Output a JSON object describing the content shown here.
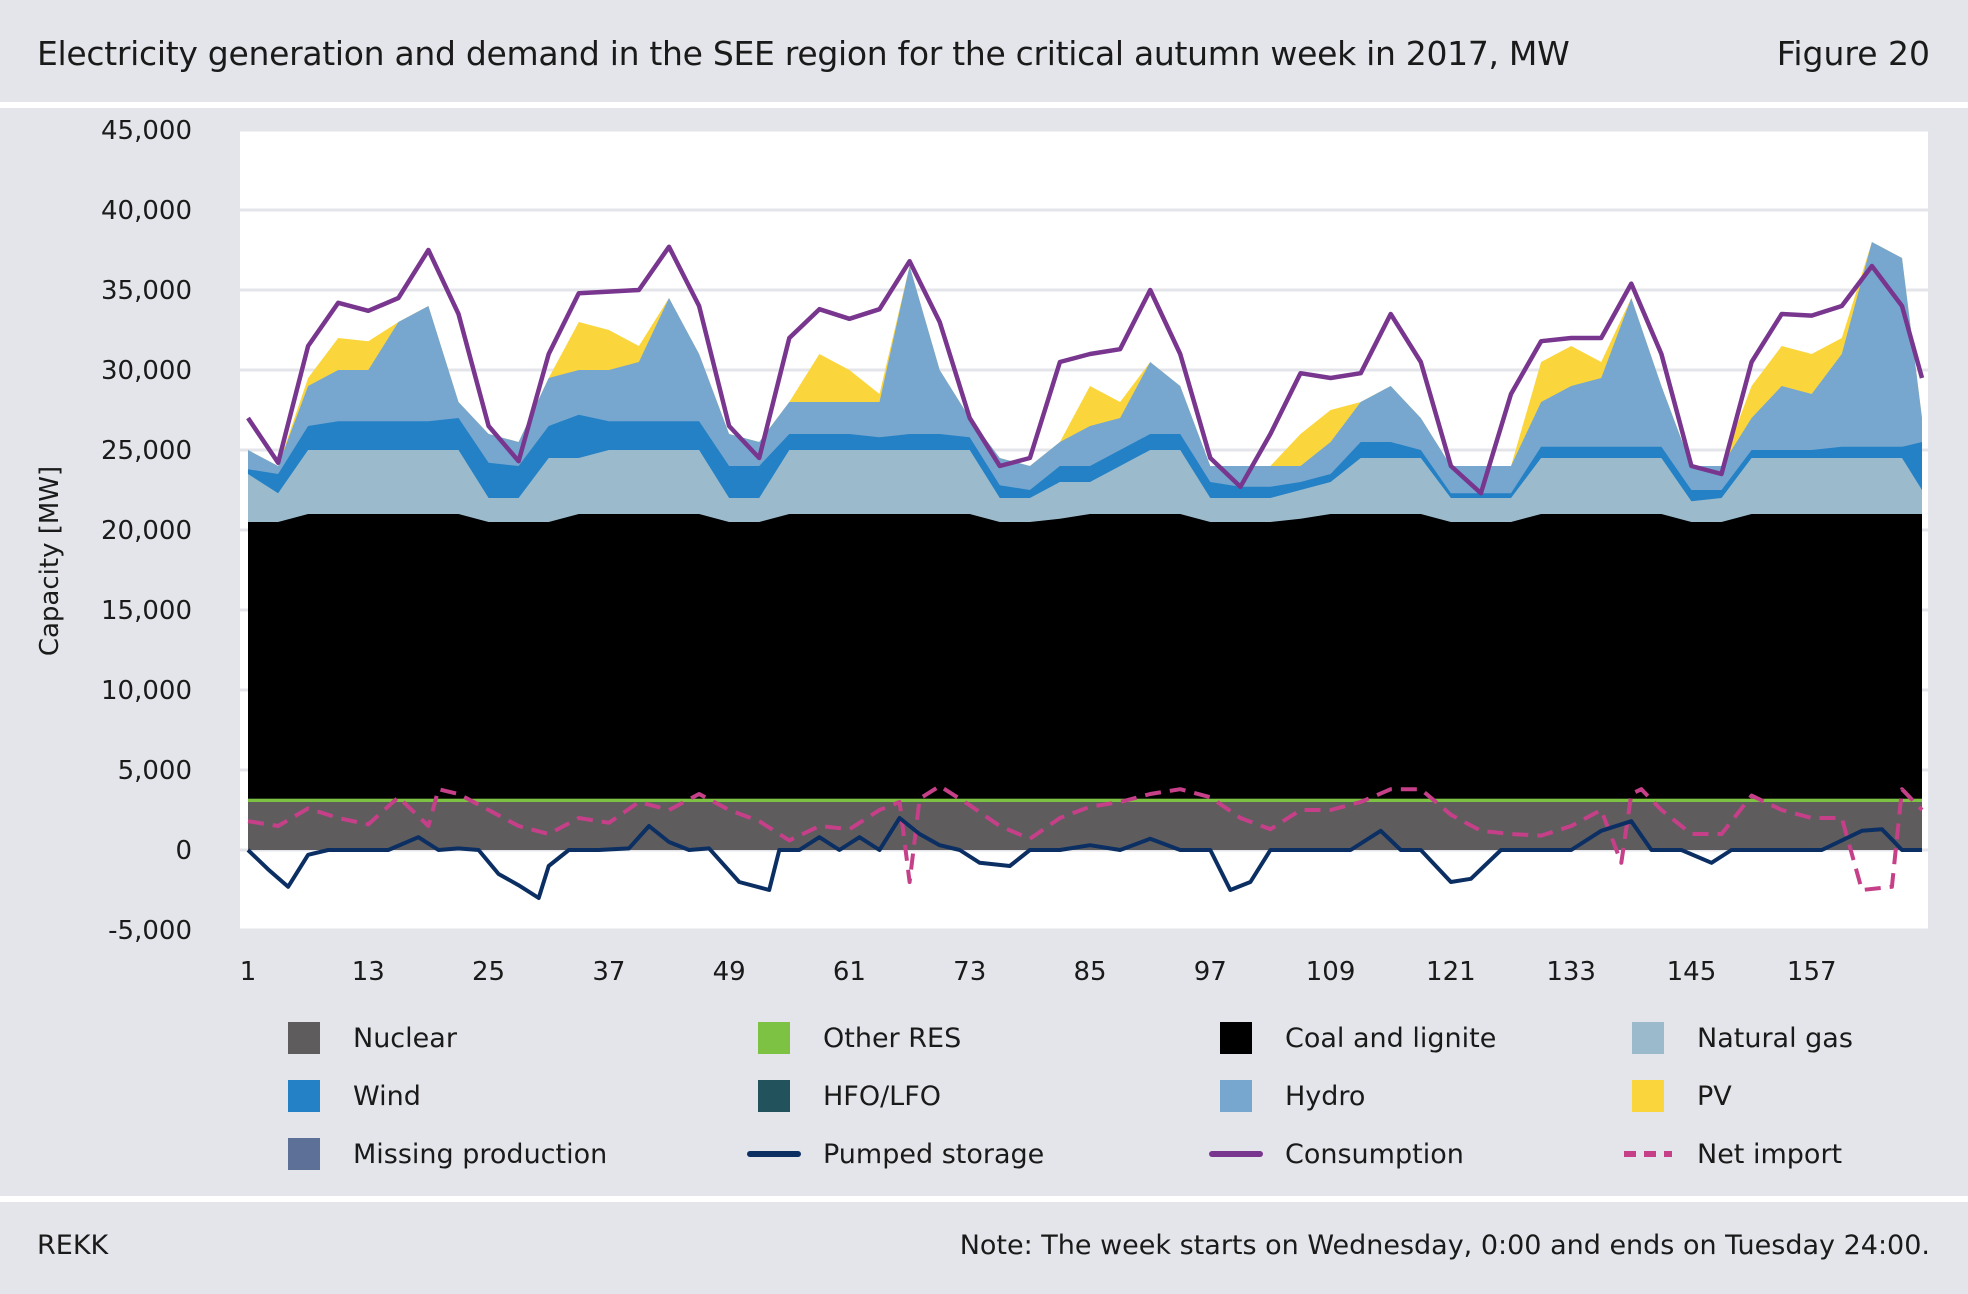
{
  "header": {
    "title": "Electricity generation and demand in the SEE region for the critical autumn week in 2017, MW",
    "figure_label": "Figure 20"
  },
  "footer": {
    "source": "REKK",
    "note": "Note: The week starts on Wednesday, 0:00 and ends on Tuesday 24:00."
  },
  "chart_data": {
    "type": "area",
    "title": "Electricity generation and demand in the SEE region for the critical autumn week in 2017, MW",
    "ylabel": "Capacity [MW]",
    "xlabel": "",
    "ylim": [
      -5000,
      45000
    ],
    "xlim": [
      1,
      168
    ],
    "yticks": [
      -5000,
      0,
      5000,
      10000,
      15000,
      20000,
      25000,
      30000,
      35000,
      40000,
      45000
    ],
    "ytick_labels": [
      "-5,000",
      "0",
      "5,000",
      "10,000",
      "15,000",
      "20,000",
      "25,000",
      "30,000",
      "35,000",
      "40,000",
      "45,000"
    ],
    "xticks": [
      1,
      13,
      25,
      37,
      49,
      61,
      73,
      85,
      97,
      109,
      121,
      133,
      145,
      157
    ],
    "xtick_labels": [
      "1",
      "13",
      "25",
      "37",
      "49",
      "61",
      "73",
      "85",
      "97",
      "109",
      "121",
      "133",
      "145",
      "157"
    ],
    "grid": "horizontal",
    "legend_position": "bottom",
    "colors": {
      "Nuclear": "#5e5c5d",
      "Other RES": "#7dc242",
      "Coal and lignite": "#000000",
      "Natural gas": "#9bbbcc",
      "Wind": "#2581c5",
      "HFO/LFO": "#22525c",
      "Hydro": "#77a7cf",
      "PV": "#fbd53c",
      "Missing production": "#5d7097",
      "Pumped storage": "#0b2f63",
      "Consumption": "#79368f",
      "Net import": "#c54088"
    },
    "legend": [
      {
        "name": "Nuclear",
        "kind": "box"
      },
      {
        "name": "Other RES",
        "kind": "box"
      },
      {
        "name": "Coal and lignite",
        "kind": "box"
      },
      {
        "name": "Natural gas",
        "kind": "box"
      },
      {
        "name": "Wind",
        "kind": "box"
      },
      {
        "name": "HFO/LFO",
        "kind": "box"
      },
      {
        "name": "Hydro",
        "kind": "box"
      },
      {
        "name": "PV",
        "kind": "box"
      },
      {
        "name": "Missing production",
        "kind": "box"
      },
      {
        "name": "Pumped storage",
        "kind": "line"
      },
      {
        "name": "Consumption",
        "kind": "line"
      },
      {
        "name": "Net import",
        "kind": "dash"
      }
    ],
    "stacked_upper_edges": {
      "x": [
        1,
        4,
        7,
        10,
        13,
        16,
        19,
        22,
        25,
        28,
        31,
        34,
        37,
        40,
        43,
        46,
        49,
        52,
        55,
        58,
        61,
        64,
        67,
        70,
        73,
        76,
        79,
        82,
        85,
        88,
        91,
        94,
        97,
        100,
        103,
        106,
        109,
        112,
        115,
        118,
        121,
        124,
        127,
        130,
        133,
        136,
        139,
        142,
        145,
        148,
        151,
        154,
        157,
        160,
        163,
        166,
        168
      ],
      "Nuclear": [
        3000,
        3000,
        3000,
        3000,
        3000,
        3000,
        3000,
        3000,
        3000,
        3000,
        3000,
        3000,
        3000,
        3000,
        3000,
        3000,
        3000,
        3000,
        3000,
        3000,
        3000,
        3000,
        3000,
        3000,
        3000,
        3000,
        3000,
        3000,
        3000,
        3000,
        3000,
        3000,
        3000,
        3000,
        3000,
        3000,
        3000,
        3000,
        3000,
        3000,
        3000,
        3000,
        3000,
        3000,
        3000,
        3000,
        3000,
        3000,
        3000,
        3000,
        3000,
        3000,
        3000,
        3000,
        3000,
        3000,
        3000
      ],
      "Other RES": [
        3200,
        3200,
        3200,
        3200,
        3200,
        3200,
        3200,
        3200,
        3200,
        3200,
        3200,
        3200,
        3200,
        3200,
        3200,
        3200,
        3200,
        3200,
        3200,
        3200,
        3200,
        3200,
        3200,
        3200,
        3200,
        3200,
        3200,
        3200,
        3200,
        3200,
        3200,
        3200,
        3200,
        3200,
        3200,
        3200,
        3200,
        3200,
        3200,
        3200,
        3200,
        3200,
        3200,
        3200,
        3200,
        3200,
        3200,
        3200,
        3200,
        3200,
        3200,
        3200,
        3200,
        3200,
        3200,
        3200,
        3200
      ],
      "Coal and lignite": [
        20500,
        20500,
        21000,
        21000,
        21000,
        21000,
        21000,
        21000,
        20500,
        20500,
        20500,
        21000,
        21000,
        21000,
        21000,
        21000,
        20500,
        20500,
        21000,
        21000,
        21000,
        21000,
        21000,
        21000,
        21000,
        20500,
        20500,
        20700,
        21000,
        21000,
        21000,
        21000,
        20500,
        20500,
        20500,
        20700,
        21000,
        21000,
        21000,
        21000,
        20500,
        20500,
        20500,
        21000,
        21000,
        21000,
        21000,
        21000,
        20500,
        20500,
        21000,
        21000,
        21000,
        21000,
        21000,
        21000,
        21000
      ],
      "Natural gas": [
        23500,
        22300,
        25000,
        25000,
        25000,
        25000,
        25000,
        25000,
        22000,
        22000,
        24500,
        24500,
        25000,
        25000,
        25000,
        25000,
        22000,
        22000,
        25000,
        25000,
        25000,
        25000,
        25000,
        25000,
        25000,
        22000,
        22000,
        23000,
        23000,
        24000,
        25000,
        25000,
        22000,
        22000,
        22000,
        22500,
        23000,
        24500,
        24500,
        24500,
        22000,
        22000,
        22000,
        24500,
        24500,
        24500,
        24500,
        24500,
        21800,
        22000,
        24500,
        24500,
        24500,
        24500,
        24500,
        24500,
        22500
      ],
      "Wind": [
        23800,
        23500,
        26500,
        26800,
        26800,
        26800,
        26800,
        27000,
        24200,
        24000,
        26500,
        27200,
        26800,
        26800,
        26800,
        26800,
        24000,
        24000,
        26000,
        26000,
        26000,
        25800,
        26000,
        26000,
        25800,
        22800,
        22500,
        24000,
        24000,
        25000,
        26000,
        26000,
        23000,
        22700,
        22700,
        23000,
        23500,
        25500,
        25500,
        25000,
        22300,
        22300,
        22300,
        25200,
        25200,
        25200,
        25200,
        25200,
        22500,
        22500,
        25000,
        25000,
        25000,
        25200,
        25200,
        25200,
        25500
      ],
      "Hydro": [
        25000,
        24000,
        29000,
        30000,
        30000,
        33000,
        34000,
        28000,
        26000,
        25500,
        29500,
        30000,
        30000,
        30500,
        34500,
        31000,
        26000,
        25500,
        28000,
        28000,
        28000,
        28000,
        36500,
        30000,
        27000,
        24500,
        24000,
        25500,
        26500,
        27000,
        30500,
        29000,
        24000,
        24000,
        24000,
        24000,
        25500,
        28000,
        29000,
        27000,
        24000,
        24000,
        24000,
        28000,
        29000,
        29500,
        34500,
        29000,
        24000,
        24000,
        27000,
        29000,
        28500,
        31000,
        38000,
        37000,
        27000
      ],
      "PV": [
        25000,
        24000,
        29500,
        32000,
        31800,
        33000,
        34000,
        28000,
        26000,
        25500,
        29500,
        33000,
        32500,
        31500,
        34500,
        31000,
        26000,
        25500,
        28000,
        31000,
        30000,
        28500,
        36500,
        30000,
        27000,
        24500,
        24000,
        25500,
        29000,
        28000,
        30500,
        29000,
        24000,
        24000,
        24000,
        26000,
        27500,
        28000,
        29000,
        27000,
        24000,
        24000,
        24000,
        30500,
        31500,
        30500,
        34500,
        29000,
        24000,
        24000,
        29000,
        31500,
        31000,
        32000,
        38000,
        37000,
        27000
      ]
    },
    "consumption": {
      "x": [
        1,
        4,
        7,
        10,
        13,
        16,
        19,
        22,
        25,
        28,
        31,
        34,
        37,
        40,
        43,
        46,
        49,
        52,
        55,
        58,
        61,
        64,
        67,
        70,
        73,
        76,
        79,
        82,
        85,
        88,
        91,
        94,
        97,
        100,
        103,
        106,
        109,
        112,
        115,
        118,
        121,
        124,
        127,
        130,
        133,
        136,
        139,
        142,
        145,
        148,
        151,
        154,
        157,
        160,
        163,
        166,
        168
      ],
      "y": [
        27000,
        24200,
        31500,
        34200,
        33700,
        34500,
        37500,
        33500,
        26500,
        24300,
        31000,
        34800,
        34900,
        35000,
        37700,
        34000,
        26500,
        24500,
        32000,
        33800,
        33200,
        33800,
        36800,
        33000,
        27000,
        24000,
        24500,
        30500,
        31000,
        31300,
        35000,
        31000,
        24500,
        22700,
        26000,
        29800,
        29500,
        29800,
        33500,
        30500,
        24000,
        22300,
        28500,
        31800,
        32000,
        32000,
        35400,
        31000,
        24000,
        23500,
        30500,
        33500,
        33400,
        34000,
        36500,
        34000,
        29500
      ]
    },
    "pumped_storage": {
      "x": [
        1,
        3,
        5,
        7,
        9,
        12,
        15,
        18,
        20,
        22,
        24,
        26,
        28,
        30,
        31,
        33,
        36,
        39,
        41,
        43,
        45,
        47,
        50,
        53,
        54,
        56,
        58,
        60,
        62,
        64,
        66,
        68,
        70,
        72,
        74,
        77,
        79,
        82,
        85,
        88,
        91,
        94,
        97,
        99,
        101,
        103,
        105,
        108,
        111,
        114,
        116,
        118,
        121,
        123,
        126,
        129,
        133,
        136,
        139,
        141,
        144,
        147,
        149,
        152,
        155,
        158,
        162,
        164,
        166,
        168
      ],
      "y": [
        0,
        -1200,
        -2300,
        -300,
        0,
        0,
        0,
        800,
        0,
        100,
        0,
        -1500,
        -2200,
        -3000,
        -1000,
        0,
        0,
        100,
        1500,
        500,
        0,
        100,
        -2000,
        -2500,
        0,
        0,
        800,
        0,
        800,
        0,
        2000,
        1000,
        300,
        0,
        -800,
        -1000,
        0,
        0,
        300,
        0,
        700,
        0,
        0,
        -2500,
        -2000,
        0,
        0,
        0,
        0,
        1200,
        0,
        0,
        -2000,
        -1800,
        0,
        0,
        0,
        1200,
        1800,
        0,
        0,
        -800,
        0,
        0,
        0,
        0,
        1200,
        1300,
        0,
        0
      ]
    },
    "net_import": {
      "x": [
        1,
        4,
        7,
        10,
        13,
        16,
        19,
        20,
        22,
        25,
        28,
        31,
        34,
        37,
        40,
        43,
        46,
        49,
        52,
        55,
        58,
        61,
        64,
        66,
        67,
        68,
        70,
        73,
        76,
        79,
        82,
        85,
        88,
        91,
        94,
        97,
        100,
        103,
        106,
        109,
        112,
        115,
        118,
        121,
        124,
        127,
        130,
        133,
        136,
        138,
        139,
        140,
        142,
        145,
        148,
        151,
        154,
        157,
        160,
        162,
        165,
        166,
        168
      ],
      "y": [
        1800,
        1500,
        2600,
        2000,
        1600,
        3300,
        1500,
        3800,
        3500,
        2500,
        1500,
        1000,
        2000,
        1700,
        3000,
        2500,
        3500,
        2500,
        1800,
        600,
        1500,
        1300,
        2500,
        3000,
        -2000,
        3200,
        4000,
        2800,
        1500,
        700,
        2000,
        2700,
        3000,
        3500,
        3800,
        3300,
        2000,
        1300,
        2500,
        2500,
        3000,
        3800,
        3800,
        2200,
        1200,
        1000,
        900,
        1500,
        2500,
        -800,
        3500,
        3800,
        2500,
        1000,
        1000,
        3400,
        2500,
        2000,
        2000,
        -2500,
        -2300,
        3800,
        2500
      ]
    }
  }
}
